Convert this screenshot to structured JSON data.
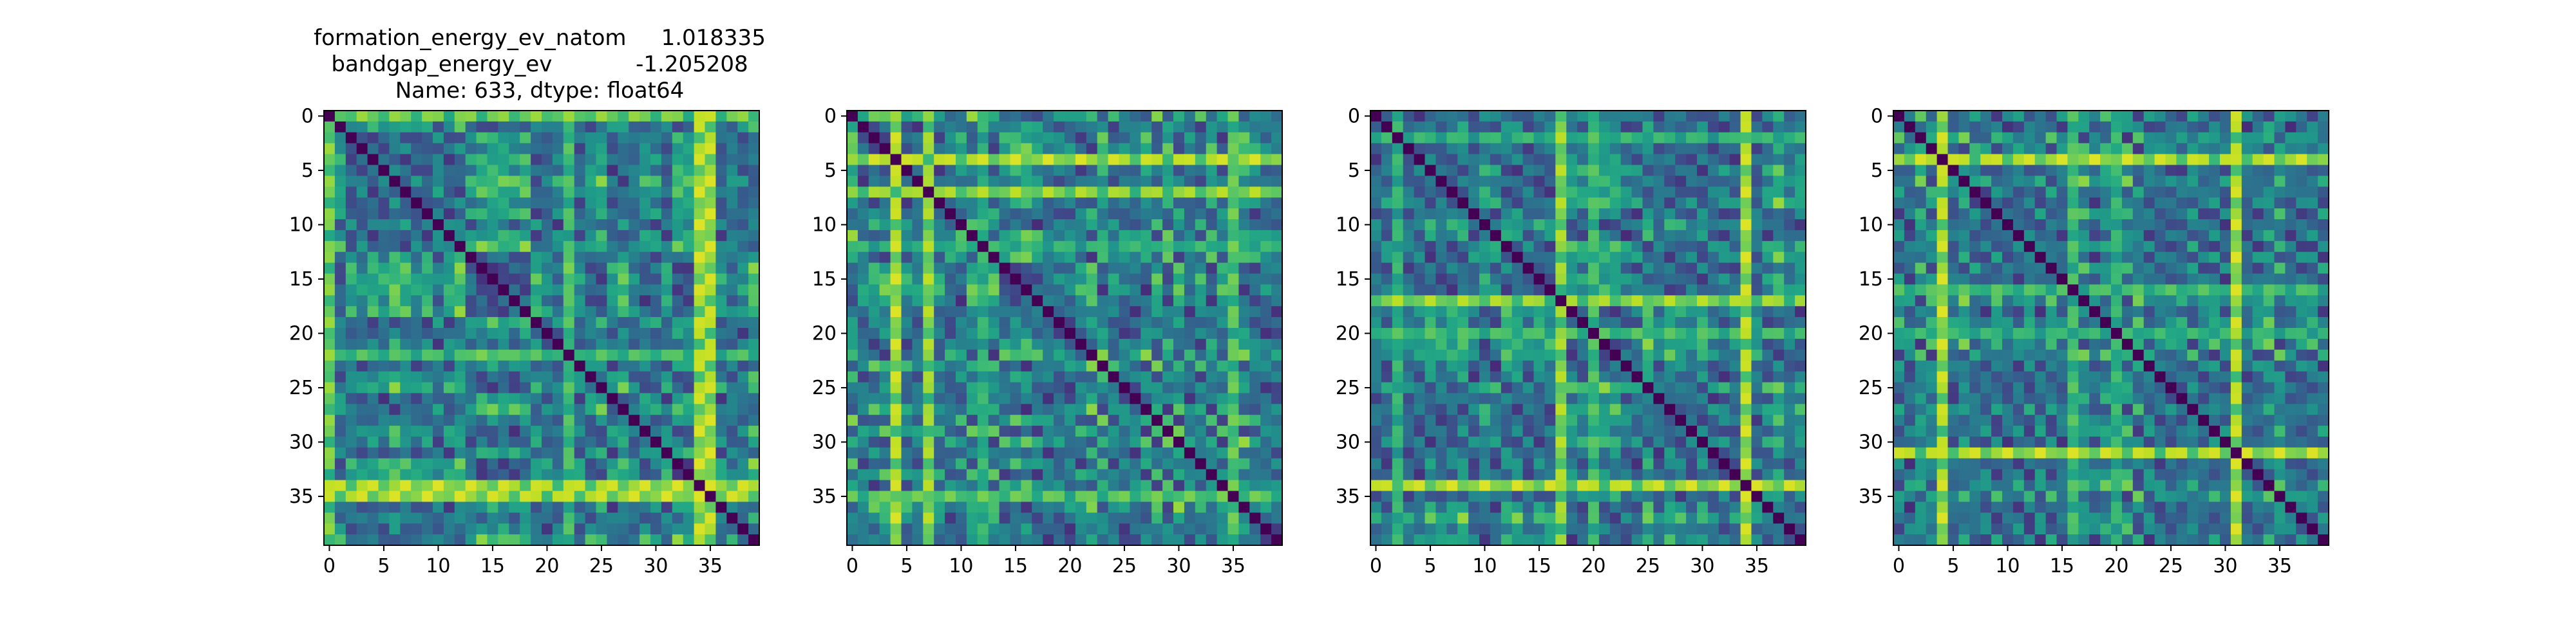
{
  "figure": {
    "title_lines": [
      "formation_energy_ev_natom     1.018335",
      "bandgap_energy_ev            -1.205208",
      "Name: 633, dtype: float64"
    ]
  },
  "chart_data": [
    {
      "type": "heatmap",
      "colormap": "viridis",
      "matrix_size": 40,
      "diagonal_value": 0,
      "x_ticks": [
        0,
        5,
        10,
        15,
        20,
        25,
        30,
        35
      ],
      "y_ticks": [
        0,
        5,
        10,
        15,
        20,
        25,
        30,
        35
      ],
      "hotspots": [
        [
          34,
          0.95
        ],
        [
          35,
          0.95
        ],
        [
          0,
          0.85
        ],
        [
          22,
          0.75
        ]
      ]
    },
    {
      "type": "heatmap",
      "colormap": "viridis",
      "matrix_size": 40,
      "diagonal_value": 0,
      "x_ticks": [
        0,
        5,
        10,
        15,
        20,
        25,
        30,
        35
      ],
      "y_ticks": [
        0,
        5,
        10,
        15,
        20,
        25,
        30,
        35
      ],
      "hotspots": [
        [
          4,
          0.95
        ],
        [
          7,
          0.9
        ],
        [
          35,
          0.8
        ],
        [
          12,
          0.7
        ]
      ]
    },
    {
      "type": "heatmap",
      "colormap": "viridis",
      "matrix_size": 40,
      "diagonal_value": 0,
      "x_ticks": [
        0,
        5,
        10,
        15,
        20,
        25,
        30,
        35
      ],
      "y_ticks": [
        0,
        5,
        10,
        15,
        20,
        25,
        30,
        35
      ],
      "hotspots": [
        [
          34,
          0.95
        ],
        [
          17,
          0.9
        ],
        [
          20,
          0.75
        ],
        [
          2,
          0.7
        ]
      ]
    },
    {
      "type": "heatmap",
      "colormap": "viridis",
      "matrix_size": 40,
      "diagonal_value": 0,
      "x_ticks": [
        0,
        5,
        10,
        15,
        20,
        25,
        30,
        35
      ],
      "y_ticks": [
        0,
        5,
        10,
        15,
        20,
        25,
        30,
        35
      ],
      "hotspots": [
        [
          31,
          0.95
        ],
        [
          4,
          0.95
        ],
        [
          16,
          0.75
        ],
        [
          20,
          0.7
        ]
      ]
    }
  ]
}
